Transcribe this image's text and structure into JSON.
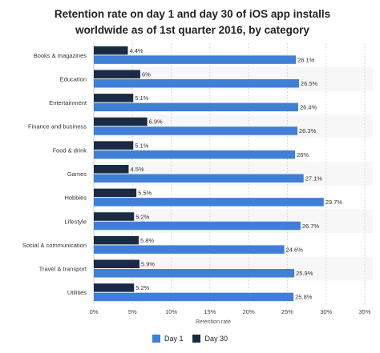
{
  "chart_data": {
    "type": "bar",
    "orientation": "horizontal",
    "title": "Retention rate on day 1 and day 30 of iOS app installs worldwide as of 1st quarter 2016, by category",
    "xlabel": "Retention rate",
    "ylabel": "",
    "categories": [
      "Books & magazines",
      "Education",
      "Entertainment",
      "Finance and business",
      "Food & drink",
      "Games",
      "Hobbies",
      "Lifestyle",
      "Social & communication",
      "Travel & transport",
      "Utilities"
    ],
    "series": [
      {
        "name": "Day 30",
        "color": "#1a2b44",
        "values": [
          4.4,
          6,
          5.1,
          6.9,
          5.1,
          4.5,
          5.5,
          5.2,
          5.8,
          5.9,
          5.2
        ],
        "labels": [
          "4.4%",
          "6%",
          "5.1%",
          "6.9%",
          "5.1%",
          "4.5%",
          "5.5%",
          "5.2%",
          "5.8%",
          "5.9%",
          "5.2%"
        ]
      },
      {
        "name": "Day 1",
        "color": "#3f7fd6",
        "values": [
          26.1,
          26.5,
          26.4,
          26.3,
          26,
          27.1,
          29.7,
          26.7,
          24.6,
          25.9,
          25.8
        ],
        "labels": [
          "26.1%",
          "26.5%",
          "26.4%",
          "26.3%",
          "26%",
          "27.1%",
          "29.7%",
          "26.7%",
          "24.6%",
          "25.9%",
          "25.8%"
        ]
      }
    ],
    "xlim": [
      0,
      35
    ],
    "xticks": [
      0,
      5,
      10,
      15,
      20,
      25,
      30,
      35
    ],
    "xtick_labels": [
      "0%",
      "5%",
      "10%",
      "15%",
      "20%",
      "25%",
      "30%",
      "35%"
    ],
    "grid": "vertical dashed",
    "legend_position": "bottom-center",
    "legend_order": [
      "Day 1",
      "Day 30"
    ]
  }
}
